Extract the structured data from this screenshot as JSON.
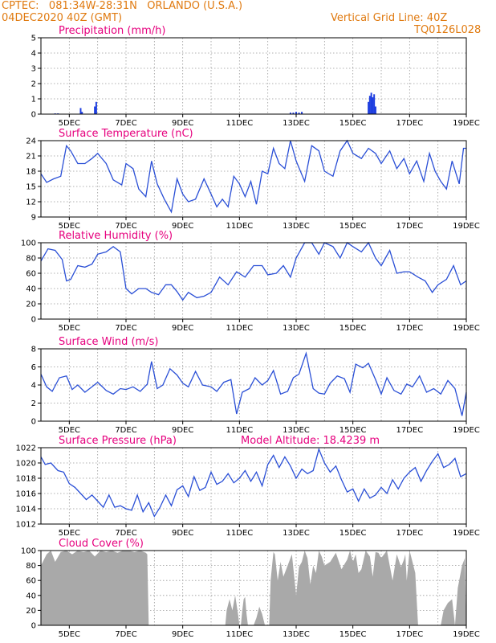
{
  "header": {
    "line1": "CPTEC:   081:34W-28:31N   ORLANDO (U.S.A.)",
    "line2": "04DEC2020 40Z (GMT)",
    "grid_note": "Vertical Grid Line: 40Z",
    "code": "TQ0126L028"
  },
  "colors": {
    "series": "#2a4fd6",
    "cloud": "#a9a9a9",
    "precip": "#1f3fe0",
    "title": "#e6007e",
    "header": "#e07a10"
  },
  "date_labels": [
    "5DEC",
    "7DEC",
    "9DEC",
    "11DEC",
    "13DEC",
    "15DEC",
    "17DEC",
    "19DEC"
  ],
  "chart_data": [
    {
      "type": "bar",
      "title": "Precipitation (mm/h)",
      "x_unit": "day of Dec 2020",
      "xlim": [
        4.0,
        19.0
      ],
      "ylim": [
        0,
        5
      ],
      "yticks": [
        "0",
        "1",
        "2",
        "3",
        "4",
        "5"
      ],
      "x": [
        4.5,
        4.6,
        5.4,
        5.45,
        5.9,
        5.95,
        12.8,
        12.9,
        13.0,
        13.1,
        13.2,
        15.55,
        15.6,
        15.65,
        15.7,
        15.75,
        15.8
      ],
      "values": [
        0.05,
        0.05,
        0.4,
        0.15,
        0.5,
        0.8,
        0.1,
        0.1,
        0.15,
        0.1,
        0.15,
        0.8,
        1.2,
        1.4,
        1.1,
        1.3,
        0.5
      ]
    },
    {
      "type": "line",
      "title": "Surface Temperature (nC)",
      "x_unit": "day of Dec 2020",
      "xlim": [
        4.0,
        19.0
      ],
      "ylim": [
        9,
        24
      ],
      "yticks": [
        "9",
        "12",
        "15",
        "18",
        "21",
        "24"
      ],
      "x": [
        4.0,
        4.2,
        4.45,
        4.7,
        4.9,
        5.05,
        5.3,
        5.55,
        5.8,
        6.0,
        6.3,
        6.55,
        6.85,
        7.0,
        7.25,
        7.45,
        7.7,
        7.9,
        8.1,
        8.35,
        8.6,
        8.8,
        9.0,
        9.2,
        9.45,
        9.75,
        10.0,
        10.2,
        10.4,
        10.6,
        10.8,
        11.0,
        11.2,
        11.4,
        11.6,
        11.8,
        12.0,
        12.2,
        12.4,
        12.6,
        12.8,
        13.0,
        13.3,
        13.55,
        13.8,
        14.0,
        14.3,
        14.55,
        14.8,
        15.0,
        15.3,
        15.55,
        15.8,
        16.0,
        16.3,
        16.55,
        16.8,
        17.0,
        17.25,
        17.5,
        17.7,
        17.9,
        18.1,
        18.3,
        18.5,
        18.75,
        18.9,
        19.0
      ],
      "values": [
        17.5,
        15.8,
        16.5,
        17.0,
        23.0,
        22.0,
        19.5,
        19.5,
        20.5,
        21.5,
        19.5,
        16.3,
        15.3,
        19.5,
        18.5,
        14.5,
        13.0,
        20.0,
        15.5,
        12.5,
        10.0,
        16.5,
        13.5,
        12.0,
        12.5,
        16.5,
        13.5,
        11.0,
        12.5,
        11.0,
        17.0,
        15.5,
        13.0,
        16.0,
        11.5,
        18.0,
        17.5,
        22.5,
        19.5,
        18.5,
        24.0,
        20.0,
        16.0,
        23.0,
        22.0,
        18.0,
        17.0,
        22.0,
        24.0,
        21.5,
        20.5,
        22.5,
        21.5,
        19.5,
        22.0,
        18.5,
        20.5,
        17.5,
        20.0,
        16.0,
        21.5,
        18.0,
        16.0,
        14.5,
        20.0,
        15.5,
        22.5,
        22.5
      ]
    },
    {
      "type": "line",
      "title": "Relative Humidity (%)",
      "x_unit": "day of Dec 2020",
      "xlim": [
        4.0,
        19.0
      ],
      "ylim": [
        0,
        100
      ],
      "yticks": [
        "0",
        "20",
        "40",
        "60",
        "80",
        "100"
      ],
      "x": [
        4.0,
        4.25,
        4.5,
        4.75,
        4.9,
        5.05,
        5.3,
        5.55,
        5.8,
        6.0,
        6.3,
        6.55,
        6.8,
        7.0,
        7.2,
        7.45,
        7.7,
        7.9,
        8.15,
        8.4,
        8.6,
        8.8,
        9.0,
        9.2,
        9.5,
        9.75,
        10.0,
        10.3,
        10.6,
        10.9,
        11.2,
        11.5,
        11.8,
        12.0,
        12.3,
        12.55,
        12.8,
        13.0,
        13.3,
        13.55,
        13.8,
        14.0,
        14.3,
        14.55,
        14.8,
        15.0,
        15.3,
        15.55,
        15.8,
        16.0,
        16.3,
        16.55,
        16.8,
        17.0,
        17.3,
        17.55,
        17.8,
        18.0,
        18.3,
        18.55,
        18.8,
        19.0
      ],
      "values": [
        76,
        92,
        90,
        78,
        50,
        52,
        70,
        68,
        72,
        85,
        88,
        95,
        88,
        40,
        33,
        40,
        40,
        35,
        32,
        45,
        45,
        36,
        25,
        35,
        28,
        30,
        35,
        55,
        45,
        62,
        55,
        70,
        70,
        58,
        60,
        70,
        55,
        80,
        100,
        100,
        85,
        100,
        95,
        80,
        100,
        95,
        88,
        100,
        80,
        70,
        90,
        60,
        62,
        62,
        55,
        50,
        35,
        45,
        52,
        70,
        45,
        50
      ]
    },
    {
      "type": "line",
      "title": "Surface Wind (m/s)",
      "x_unit": "day of Dec 2020",
      "xlim": [
        4.0,
        19.0
      ],
      "ylim": [
        0,
        8
      ],
      "yticks": [
        "0",
        "2",
        "4",
        "6",
        "8"
      ],
      "x": [
        4.0,
        4.2,
        4.4,
        4.65,
        4.9,
        5.1,
        5.3,
        5.55,
        5.8,
        6.0,
        6.3,
        6.55,
        6.8,
        7.0,
        7.25,
        7.5,
        7.75,
        7.9,
        8.1,
        8.3,
        8.55,
        8.8,
        9.0,
        9.2,
        9.45,
        9.7,
        10.0,
        10.2,
        10.45,
        10.7,
        10.9,
        11.1,
        11.35,
        11.55,
        11.8,
        12.0,
        12.2,
        12.45,
        12.7,
        12.9,
        13.1,
        13.35,
        13.6,
        13.8,
        14.0,
        14.2,
        14.45,
        14.7,
        14.9,
        15.1,
        15.35,
        15.55,
        15.8,
        16.0,
        16.2,
        16.45,
        16.7,
        16.9,
        17.1,
        17.35,
        17.6,
        17.85,
        18.1,
        18.35,
        18.6,
        18.85,
        19.0
      ],
      "values": [
        5.2,
        3.8,
        3.3,
        4.8,
        5.0,
        3.5,
        4.0,
        3.2,
        3.8,
        4.3,
        3.4,
        3.0,
        3.6,
        3.5,
        3.8,
        3.3,
        4.1,
        6.6,
        3.6,
        4.0,
        5.8,
        5.1,
        4.2,
        3.8,
        5.5,
        4.0,
        3.8,
        3.3,
        4.3,
        4.6,
        0.8,
        3.2,
        3.6,
        4.8,
        4.0,
        4.5,
        5.6,
        3.0,
        3.3,
        4.8,
        5.2,
        7.5,
        3.6,
        3.1,
        3.0,
        4.2,
        5.0,
        4.7,
        3.2,
        6.3,
        5.9,
        6.4,
        4.6,
        3.0,
        4.8,
        3.4,
        3.0,
        4.1,
        3.8,
        5.0,
        3.2,
        3.6,
        3.0,
        4.5,
        3.6,
        0.6,
        3.2
      ]
    },
    {
      "type": "line",
      "title": "Surface Pressure (hPa)",
      "annotation": "Model Altitude:  18.4239  m",
      "x_unit": "day of Dec 2020",
      "xlim": [
        4.0,
        19.0
      ],
      "ylim": [
        1012,
        1022
      ],
      "yticks": [
        "1012",
        "1014",
        "1016",
        "1018",
        "1020",
        "1022"
      ],
      "x": [
        4.0,
        4.15,
        4.35,
        4.6,
        4.8,
        5.0,
        5.2,
        5.4,
        5.6,
        5.8,
        6.0,
        6.2,
        6.4,
        6.6,
        6.8,
        7.0,
        7.2,
        7.4,
        7.6,
        7.8,
        8.0,
        8.2,
        8.4,
        8.6,
        8.8,
        9.0,
        9.2,
        9.4,
        9.6,
        9.8,
        10.0,
        10.2,
        10.4,
        10.6,
        10.8,
        11.0,
        11.2,
        11.4,
        11.6,
        11.8,
        12.0,
        12.2,
        12.4,
        12.6,
        12.8,
        13.0,
        13.2,
        13.4,
        13.6,
        13.8,
        14.0,
        14.2,
        14.4,
        14.6,
        14.8,
        15.0,
        15.2,
        15.4,
        15.6,
        15.8,
        16.0,
        16.2,
        16.4,
        16.6,
        16.8,
        17.0,
        17.2,
        17.4,
        17.6,
        17.8,
        18.0,
        18.2,
        18.4,
        18.6,
        18.8,
        19.0
      ],
      "values": [
        1020.8,
        1019.8,
        1020.0,
        1019.0,
        1018.8,
        1017.3,
        1016.8,
        1016.0,
        1015.2,
        1015.8,
        1015.0,
        1014.2,
        1015.8,
        1014.2,
        1014.4,
        1014.0,
        1013.8,
        1015.8,
        1013.6,
        1014.8,
        1013.0,
        1014.2,
        1015.8,
        1014.4,
        1016.5,
        1017.0,
        1015.6,
        1018.2,
        1016.4,
        1016.8,
        1018.8,
        1017.2,
        1017.6,
        1018.6,
        1017.4,
        1018.0,
        1019.0,
        1017.6,
        1018.8,
        1017.0,
        1019.8,
        1021.0,
        1019.4,
        1020.8,
        1019.6,
        1018.0,
        1019.2,
        1018.6,
        1019.0,
        1021.8,
        1020.0,
        1018.8,
        1019.6,
        1017.8,
        1016.2,
        1016.6,
        1015.0,
        1016.6,
        1015.4,
        1015.8,
        1016.8,
        1016.0,
        1017.8,
        1016.6,
        1018.0,
        1018.8,
        1019.4,
        1017.6,
        1019.0,
        1020.2,
        1021.2,
        1019.4,
        1019.8,
        1020.6,
        1018.2,
        1018.6
      ]
    },
    {
      "type": "area",
      "title": "Cloud Cover (%)",
      "x_unit": "day of Dec 2020",
      "xlim": [
        4.0,
        19.0
      ],
      "ylim": [
        0,
        100
      ],
      "yticks": [
        "0",
        "20",
        "40",
        "60",
        "80",
        "100"
      ],
      "x": [
        4.0,
        4.2,
        4.35,
        4.5,
        4.7,
        4.9,
        5.1,
        5.3,
        5.5,
        5.7,
        5.9,
        6.1,
        6.3,
        6.5,
        6.7,
        6.9,
        7.1,
        7.3,
        7.5,
        7.7,
        7.75,
        7.8,
        10.5,
        10.55,
        10.65,
        10.75,
        10.85,
        10.95,
        11.0,
        11.05,
        11.1,
        11.15,
        11.2,
        11.25,
        11.3,
        11.35,
        11.4,
        11.5,
        11.6,
        11.7,
        11.8,
        11.9,
        12.0,
        12.05,
        12.1,
        12.15,
        12.2,
        12.25,
        12.35,
        12.45,
        12.55,
        12.7,
        12.85,
        13.0,
        13.1,
        13.2,
        13.3,
        13.4,
        13.5,
        13.6,
        13.7,
        13.8,
        13.9,
        14.0,
        14.2,
        14.4,
        14.6,
        14.8,
        14.9,
        15.0,
        15.1,
        15.2,
        15.3,
        15.45,
        15.6,
        15.7,
        15.8,
        15.9,
        16.0,
        16.2,
        16.4,
        16.55,
        16.7,
        16.8,
        16.85,
        16.9,
        17.0,
        17.1,
        17.2,
        17.3,
        18.0,
        18.1,
        18.2,
        18.35,
        18.5,
        18.6,
        18.7,
        18.85,
        18.95,
        19.0
      ],
      "values": [
        80,
        95,
        100,
        85,
        98,
        100,
        95,
        100,
        98,
        100,
        92,
        100,
        98,
        100,
        97,
        100,
        100,
        98,
        100,
        97,
        95,
        0,
        0,
        20,
        35,
        20,
        40,
        15,
        0,
        0,
        20,
        35,
        38,
        15,
        0,
        0,
        0,
        0,
        10,
        25,
        15,
        0,
        0,
        0,
        60,
        80,
        98,
        95,
        60,
        85,
        65,
        80,
        95,
        40,
        78,
        85,
        100,
        90,
        55,
        80,
        70,
        100,
        92,
        80,
        85,
        97,
        75,
        88,
        100,
        85,
        95,
        70,
        75,
        100,
        92,
        65,
        98,
        97,
        90,
        100,
        60,
        95,
        78,
        88,
        95,
        60,
        100,
        85,
        70,
        0,
        0,
        0,
        20,
        30,
        35,
        0,
        50,
        80,
        90,
        0
      ]
    }
  ]
}
